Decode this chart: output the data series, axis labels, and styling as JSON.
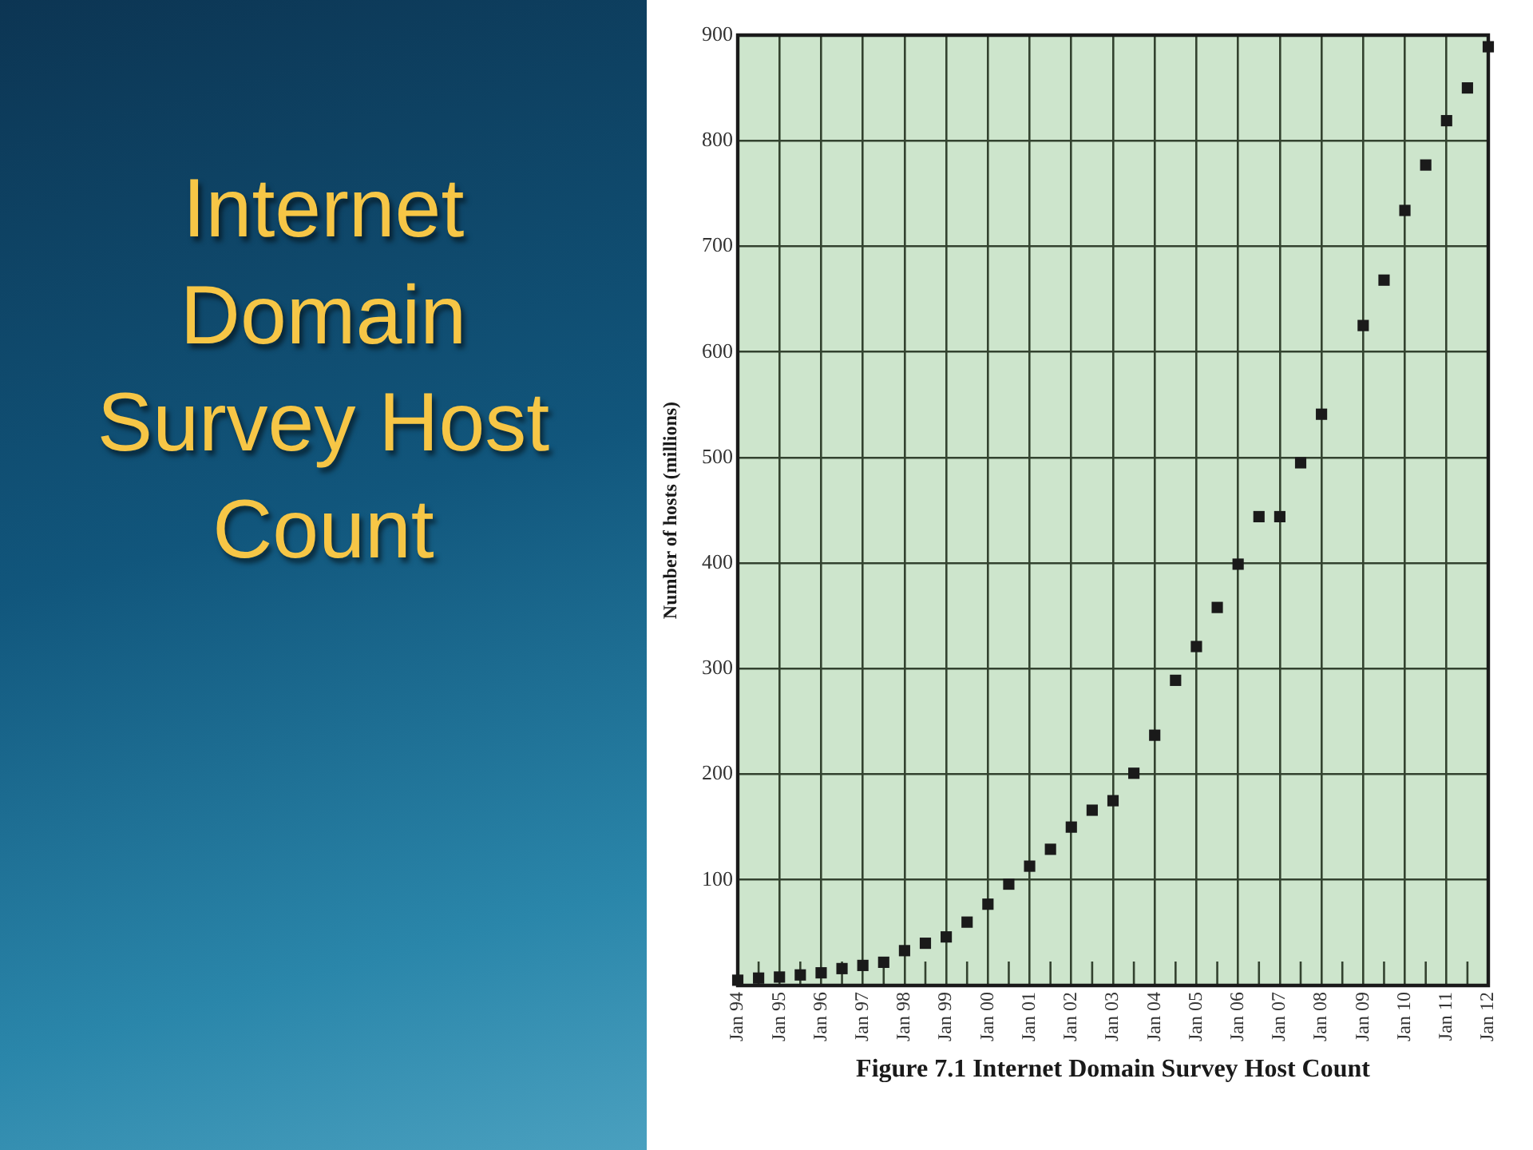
{
  "chart_data": {
    "type": "scatter",
    "title": "Internet Domain Survey Host Count",
    "ylabel": "Number of hosts (millions)",
    "annotations": [
      "Figure 7.1 Internet Domain Survey Host Count"
    ],
    "x": [
      "1994-01",
      "1994-07",
      "1995-01",
      "1995-07",
      "1996-01",
      "1996-07",
      "1997-01",
      "1997-07",
      "1998-01",
      "1998-07",
      "1999-01",
      "1999-07",
      "2000-01",
      "2000-07",
      "2001-01",
      "2001-07",
      "2002-01",
      "2002-07",
      "2003-01",
      "2003-07",
      "2004-01",
      "2004-07",
      "2005-01",
      "2005-07",
      "2006-01",
      "2006-07",
      "2007-01",
      "2007-07",
      "2008-01",
      "2008-07",
      "2009-01",
      "2009-07",
      "2010-01",
      "2010-07",
      "2011-01",
      "2011-07",
      "2012-01"
    ],
    "values": [
      5,
      7,
      8,
      10,
      12,
      16,
      19,
      22,
      33,
      40,
      46,
      60,
      77,
      96,
      113,
      129,
      150,
      166,
      175,
      201,
      237,
      289,
      321,
      358,
      399,
      444,
      444,
      495,
      541,
      null,
      625,
      668,
      734,
      777,
      819,
      850,
      889
    ],
    "color": "#1a1a1a",
    "xlim": [
      "1994-01",
      "2012-01"
    ],
    "xticks": [
      {
        "value": "1994-01",
        "label": "Jan 94"
      },
      {
        "value": "1994-07",
        "label": null
      },
      {
        "value": "1995-01",
        "label": "Jan 95"
      },
      {
        "value": "1995-07",
        "label": null
      },
      {
        "value": "1996-01",
        "label": "Jan 96"
      },
      {
        "value": "1996-07",
        "label": null
      },
      {
        "value": "1997-01",
        "label": "Jan 97"
      },
      {
        "value": "1997-07",
        "label": null
      },
      {
        "value": "1998-01",
        "label": "Jan 98"
      },
      {
        "value": "1998-07",
        "label": null
      },
      {
        "value": "1999-01",
        "label": "Jan 99"
      },
      {
        "value": "1999-07",
        "label": null
      },
      {
        "value": "2000-01",
        "label": "Jan 00"
      },
      {
        "value": "2000-07",
        "label": null
      },
      {
        "value": "2001-01",
        "label": "Jan 01"
      },
      {
        "value": "2001-07",
        "label": null
      },
      {
        "value": "2002-01",
        "label": "Jan 02"
      },
      {
        "value": "2002-07",
        "label": null
      },
      {
        "value": "2003-01",
        "label": "Jan 03"
      },
      {
        "value": "2003-07",
        "label": null
      },
      {
        "value": "2004-01",
        "label": "Jan 04"
      },
      {
        "value": "2004-07",
        "label": null
      },
      {
        "value": "2005-01",
        "label": "Jan 05"
      },
      {
        "value": "2005-07",
        "label": null
      },
      {
        "value": "2006-01",
        "label": "Jan 06"
      },
      {
        "value": "2006-07",
        "label": null
      },
      {
        "value": "2007-01",
        "label": "Jan 07"
      },
      {
        "value": "2007-07",
        "label": null
      },
      {
        "value": "2008-01",
        "label": "Jan 08"
      },
      {
        "value": "2008-07",
        "label": null
      },
      {
        "value": "2009-01",
        "label": "Jan 09"
      },
      {
        "value": "2009-07",
        "label": null
      },
      {
        "value": "2010-01",
        "label": "Jan 10"
      },
      {
        "value": "2010-07",
        "label": null
      },
      {
        "value": "2011-01",
        "label": "Jan 11"
      },
      {
        "value": "2011-07",
        "label": null
      },
      {
        "value": "2012-01",
        "label": "Jan 12"
      }
    ],
    "ylim": [
      0,
      900
    ],
    "yticks": [
      100,
      200,
      300,
      400,
      500,
      600,
      700,
      800,
      900
    ],
    "grid": true,
    "marker": "square"
  }
}
